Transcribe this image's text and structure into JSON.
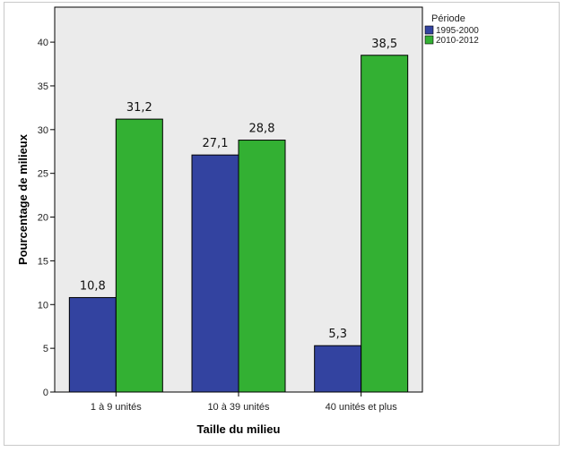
{
  "chart_data": {
    "type": "bar",
    "title": "",
    "xlabel": "Taille du milieu",
    "ylabel": "Pourcentage de milieux",
    "categories": [
      "1 à 9 unités",
      "10 à 39 unités",
      "40 unités et plus"
    ],
    "series": [
      {
        "name": "1995-2000",
        "values": [
          10.8,
          27.1,
          5.3
        ],
        "labels": [
          "10,8",
          "27,1",
          "5,3"
        ],
        "color": "#3343a0"
      },
      {
        "name": "2010-2012",
        "values": [
          31.2,
          28.8,
          38.5
        ],
        "labels": [
          "31,2",
          "28,8",
          "38,5"
        ],
        "color": "#33b033"
      }
    ],
    "ylim": [
      0,
      44
    ],
    "yticks": [
      0,
      5,
      10,
      15,
      20,
      25,
      30,
      35,
      40
    ],
    "grid": false,
    "plot_background": "#ebebeb",
    "legend": {
      "title": "Période",
      "placement": "right"
    }
  }
}
